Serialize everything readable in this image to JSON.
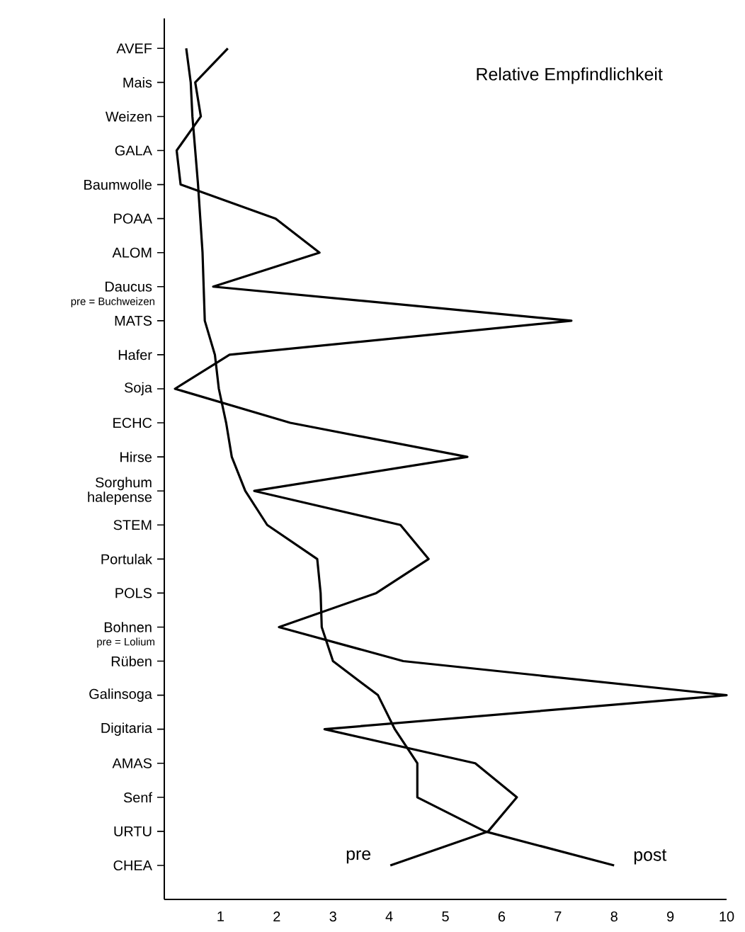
{
  "chart_data": {
    "type": "line",
    "orientation": "horizontal",
    "title": "Relative Empfindlichkeit",
    "categories": [
      "AVEF",
      "Mais",
      "Weizen",
      "GALA",
      "Baumwolle",
      "POAA",
      "ALOM",
      "Daucus",
      "MATS",
      "Hafer",
      "Soja",
      "ECHC",
      "Hirse",
      "Sorghum halepense",
      "STEM",
      "Portulak",
      "POLS",
      "Bohnen",
      "Rüben",
      "Galinsoga",
      "Digitaria",
      "AMAS",
      "Senf",
      "URTU",
      "CHEA"
    ],
    "series": [
      {
        "name": "pre",
        "color": "#000000",
        "values": [
          1.13,
          0.55,
          0.65,
          0.22,
          0.29,
          1.98,
          2.76,
          0.87,
          7.24,
          1.16,
          0.19,
          2.24,
          5.39,
          1.6,
          4.2,
          4.7,
          3.77,
          2.04,
          4.25,
          10.0,
          2.85,
          5.53,
          6.27,
          5.76,
          4.02
        ]
      },
      {
        "name": "post",
        "color": "#000000",
        "values": [
          0.39,
          0.47,
          0.5,
          0.55,
          0.6,
          0.64,
          0.68,
          0.7,
          0.72,
          0.9,
          0.97,
          1.1,
          1.2,
          1.44,
          1.83,
          2.72,
          2.78,
          2.8,
          3.0,
          3.8,
          4.1,
          4.5,
          4.5,
          5.7,
          8.0
        ]
      }
    ],
    "annotations": [
      "pre = Buchweizen",
      "pre = Lolium"
    ],
    "xlim": [
      0,
      10
    ],
    "xticks": [
      1,
      2,
      3,
      4,
      5,
      6,
      7,
      8,
      9,
      10
    ]
  }
}
